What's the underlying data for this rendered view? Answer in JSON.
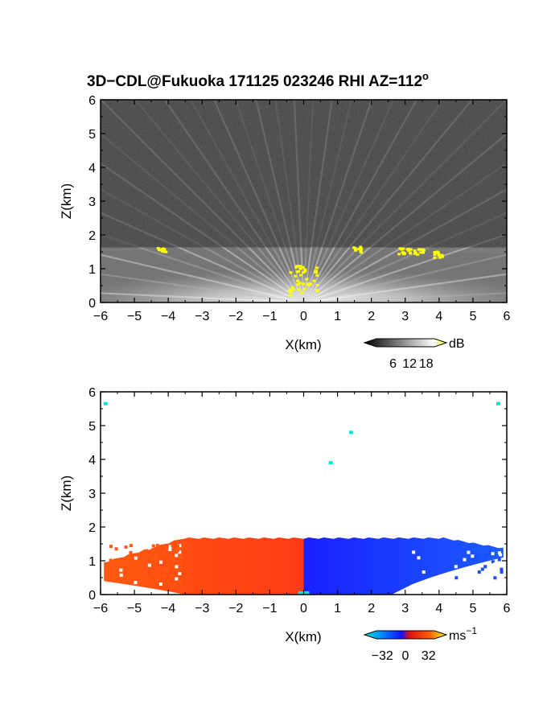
{
  "title_main": "3D−CDL@Fukuoka 171125 023246 RHI AZ=112",
  "title_sup": "o",
  "chart_data": [
    {
      "type": "heatmap",
      "name": "snr",
      "xlabel": "X(km)",
      "ylabel": "Z(km)",
      "xlim": [
        -6,
        6
      ],
      "ylim": [
        0,
        6
      ],
      "xticks": [
        "−6",
        "−5",
        "−4",
        "−3",
        "−2",
        "−1",
        "0",
        "1",
        "2",
        "3",
        "4",
        "5",
        "6"
      ],
      "yticks": [
        "0",
        "1",
        "2",
        "3",
        "4",
        "5",
        "6"
      ],
      "colorbar": {
        "unit": "dB",
        "ticks": [
          "6",
          "12",
          "18"
        ],
        "tick_values": [
          6,
          12,
          18
        ],
        "range": [
          0,
          21
        ],
        "colors": [
          "#000000",
          "#ffffff",
          "#ffff00"
        ]
      },
      "features": {
        "cloud_base_km": 1.6,
        "hotspots": [
          {
            "x": -4.2,
            "z": 1.55
          },
          {
            "x": 1.6,
            "z": 1.55
          },
          {
            "x": 3.2,
            "z": 1.5
          },
          {
            "x": 4.0,
            "z": 1.4
          },
          {
            "x": 0.0,
            "z": 0.6
          }
        ]
      }
    },
    {
      "type": "heatmap",
      "name": "doppler_velocity",
      "xlabel": "X(km)",
      "ylabel": "Z(km)",
      "xlim": [
        -6,
        6
      ],
      "ylim": [
        0,
        6
      ],
      "xticks": [
        "−6",
        "−5",
        "−4",
        "−3",
        "−2",
        "−1",
        "0",
        "1",
        "2",
        "3",
        "4",
        "5",
        "6"
      ],
      "yticks": [
        "0",
        "1",
        "2",
        "3",
        "4",
        "5",
        "6"
      ],
      "colorbar": {
        "unit": "ms",
        "unit_sup": "−1",
        "ticks": [
          "−32",
          "0",
          "32"
        ],
        "tick_values": [
          -32,
          0,
          32
        ],
        "range": [
          -40,
          40
        ],
        "colors": [
          "#00e0e0",
          "#0060ff",
          "#1010ff",
          "#e01010",
          "#ff6000",
          "#ffff00"
        ]
      },
      "features": {
        "top_km": 1.65,
        "left_color": "#ff4a12",
        "right_color": "#1a3cff",
        "speckles": [
          {
            "x": -5.85,
            "z": 5.65
          },
          {
            "x": 5.75,
            "z": 5.65
          },
          {
            "x": 1.4,
            "z": 4.8
          },
          {
            "x": 0.8,
            "z": 3.9
          },
          {
            "x": 0.0,
            "z": 0.05
          }
        ]
      }
    }
  ]
}
